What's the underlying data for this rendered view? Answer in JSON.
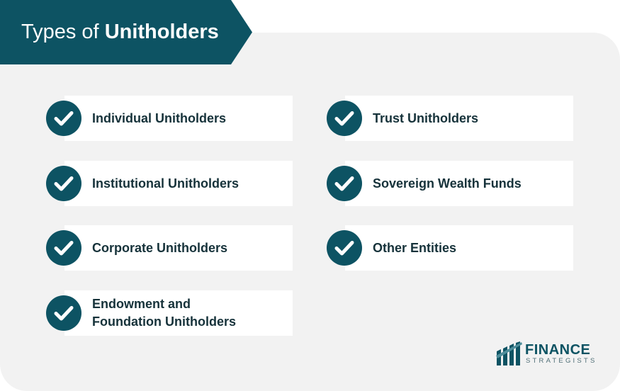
{
  "header": {
    "title_plain": "Types of",
    "title_bold": "Unitholders"
  },
  "items": [
    {
      "label": "Individual Unitholders"
    },
    {
      "label": "Trust Unitholders"
    },
    {
      "label": "Institutional Unitholders"
    },
    {
      "label": "Sovereign Wealth Funds"
    },
    {
      "label": "Corporate Unitholders"
    },
    {
      "label": "Other Entities"
    },
    {
      "label": "Endowment and Foundation Unitholders"
    }
  ],
  "logo": {
    "line1": "FINANCE",
    "line2": "STRATEGISTS"
  },
  "colors": {
    "accent": "#0d5363",
    "panel": "#f2f2f2",
    "text": "#16323a"
  },
  "icons": {
    "item": "check-circle-icon",
    "logo": "finance-strategists-logo-icon"
  }
}
